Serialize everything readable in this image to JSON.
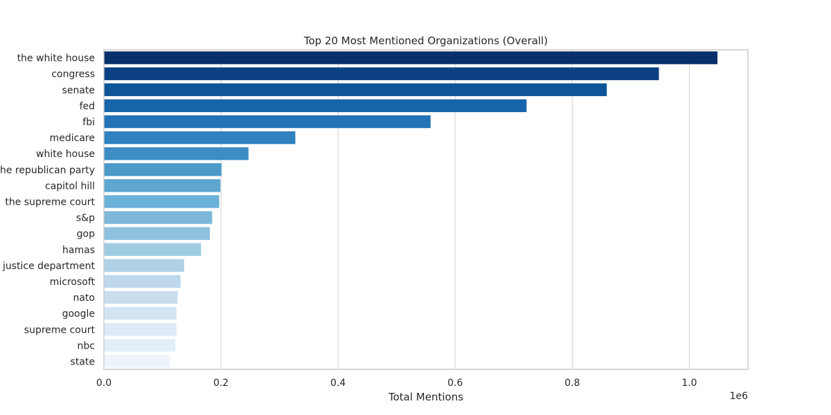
{
  "chart_data": {
    "type": "bar",
    "orientation": "horizontal",
    "title": "Top 20 Most Mentioned Organizations (Overall)",
    "xlabel": "Total Mentions",
    "ylabel": "",
    "x_scale_label": "1e6",
    "xlim": [
      0,
      1100000
    ],
    "x_ticks": [
      0,
      200000,
      400000,
      600000,
      800000,
      1000000
    ],
    "x_tick_labels": [
      "0.0",
      "0.2",
      "0.4",
      "0.6",
      "0.8",
      "1.0"
    ],
    "grid": "x",
    "categories": [
      "the white house",
      "congress",
      "senate",
      "fed",
      "fbi",
      "medicare",
      "white house",
      "the republican party",
      "capitol hill",
      "the supreme court",
      "s&p",
      "gop",
      "hamas",
      "the justice department",
      "microsoft",
      "nato",
      "google",
      "supreme court",
      "nbc",
      "state"
    ],
    "values": [
      1048000,
      948000,
      859000,
      722000,
      558000,
      327000,
      247000,
      201000,
      199000,
      197000,
      185000,
      181000,
      166000,
      137000,
      131000,
      126000,
      124000,
      124000,
      122000,
      113000
    ],
    "colors": [
      "#08306b",
      "#0b4182",
      "#0f5599",
      "#1864aa",
      "#2373b6",
      "#2f81bf",
      "#3d8dc4",
      "#4b9ac9",
      "#5ca6d0",
      "#6cb1d7",
      "#7db8da",
      "#8ec2de",
      "#a0cce2",
      "#afd2e7",
      "#bdd7ec",
      "#c9ddef",
      "#d3e4f3",
      "#dce9f6",
      "#e4eef9",
      "#edf4fc"
    ]
  }
}
